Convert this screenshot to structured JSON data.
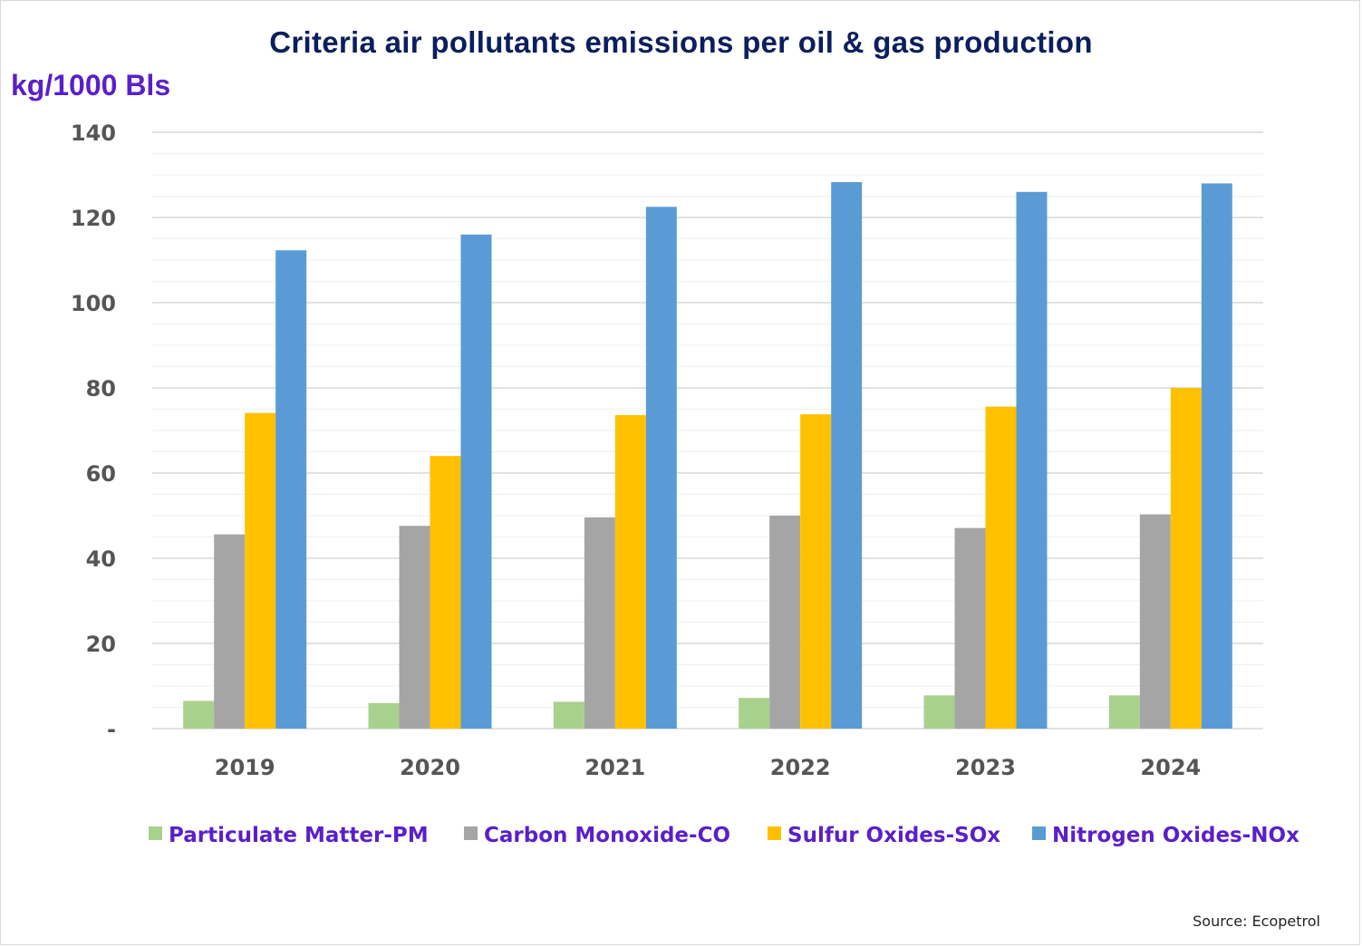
{
  "chart_data": {
    "type": "bar",
    "title": "Criteria air pollutants emissions per oil & gas production",
    "ylabel": "kg/1000 Bls",
    "source": "Source: Ecopetrol",
    "categories": [
      "2019",
      "2020",
      "2021",
      "2022",
      "2023",
      "2024"
    ],
    "ylim": [
      0,
      140
    ],
    "yticks": [
      0,
      20,
      40,
      60,
      80,
      100,
      120,
      140
    ],
    "ytick_labels": [
      "-",
      "20",
      "40",
      "60",
      "80",
      "100",
      "120",
      "140"
    ],
    "grid": true,
    "legend_position": "bottom",
    "series": [
      {
        "name": "Particulate Matter-PM",
        "color": "#a9d18e",
        "values": [
          6.5,
          6.0,
          6.3,
          7.2,
          7.8,
          7.8
        ]
      },
      {
        "name": "Carbon Monoxide-CO",
        "color": "#a5a5a5",
        "values": [
          45.6,
          47.6,
          49.6,
          50.0,
          47.1,
          50.3
        ]
      },
      {
        "name": "Sulfur Oxides-SOx",
        "color": "#ffc000",
        "values": [
          74.1,
          64.0,
          73.6,
          73.8,
          75.6,
          80.0
        ]
      },
      {
        "name": "Nitrogen Oxides-NOx",
        "color": "#5b9bd5",
        "values": [
          112.3,
          116.0,
          122.5,
          128.3,
          126.0,
          128.0
        ]
      }
    ]
  }
}
